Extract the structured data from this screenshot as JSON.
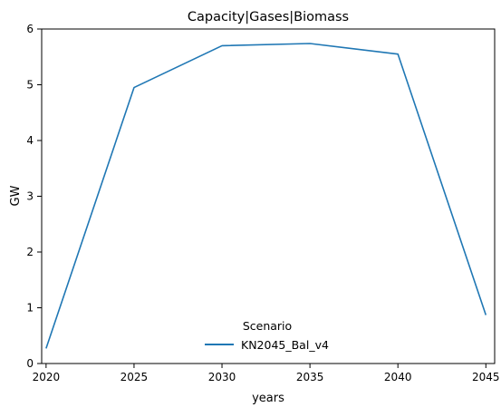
{
  "chart_data": {
    "type": "line",
    "title": "Capacity|Gases|Biomass",
    "xlabel": "years",
    "ylabel": "GW",
    "x": [
      2020,
      2025,
      2030,
      2035,
      2040,
      2045
    ],
    "xticks": [
      2020,
      2025,
      2030,
      2035,
      2040,
      2045
    ],
    "yticks": [
      0,
      1,
      2,
      3,
      4,
      5,
      6
    ],
    "xlim": [
      2019.75,
      2045.5
    ],
    "ylim": [
      0,
      6
    ],
    "grid": false,
    "legend": {
      "title": "Scenario",
      "placement": "bottom-center"
    },
    "series": [
      {
        "name": "KN2045_Bal_v4",
        "color": "#1f77b4",
        "values": [
          0.27,
          4.95,
          5.7,
          5.74,
          5.55,
          0.87
        ]
      }
    ]
  }
}
